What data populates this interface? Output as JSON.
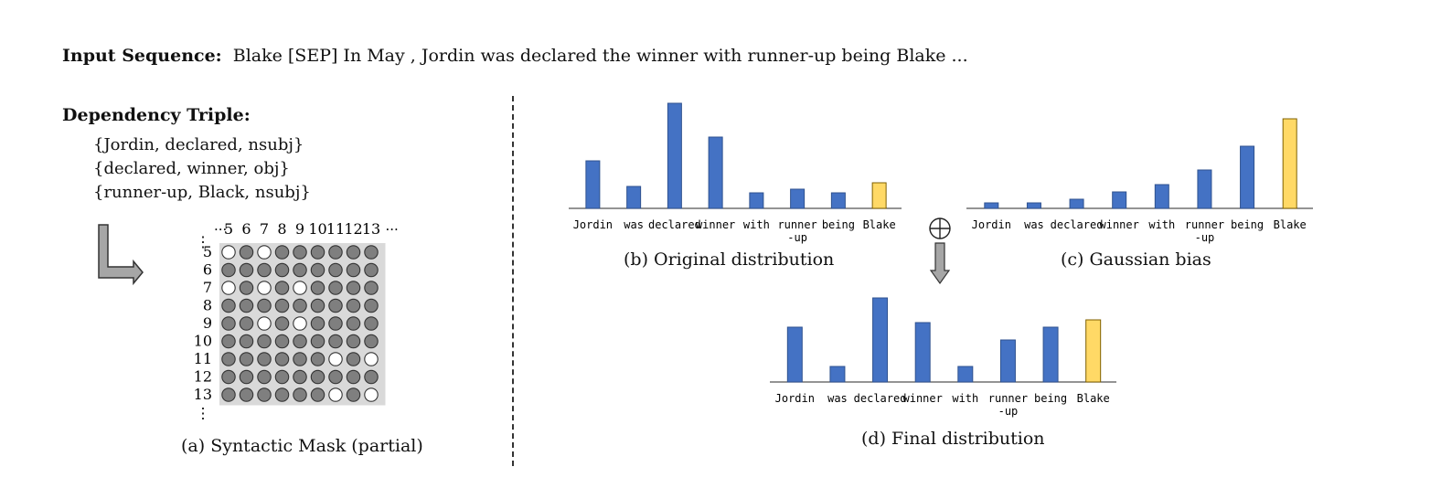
{
  "input_sequence": {
    "label": "Input Sequence:",
    "text": "Blake [SEP] In May , Jordin was declared the winner with runner-up being Blake ..."
  },
  "dependency": {
    "title": "Dependency Triple:",
    "triples": [
      "{Jordin, declared, nsubj}",
      "{declared, winner, obj}",
      "{runner-up, Black, nsubj}"
    ]
  },
  "mask": {
    "caption": "(a) Syntactic Mask (partial)",
    "col_labels": [
      "5",
      "6",
      "7",
      "8",
      "9",
      "10",
      "11",
      "12",
      "13"
    ],
    "row_labels": [
      "5",
      "6",
      "7",
      "8",
      "9",
      "10",
      "11",
      "12",
      "13"
    ],
    "ellipsis_h": "···",
    "ellipsis_v": "⋮",
    "white_cells": [
      [
        0,
        0
      ],
      [
        0,
        2
      ],
      [
        2,
        0
      ],
      [
        2,
        2
      ],
      [
        2,
        4
      ],
      [
        4,
        2
      ],
      [
        4,
        4
      ],
      [
        6,
        6
      ],
      [
        6,
        8
      ],
      [
        8,
        6
      ],
      [
        8,
        8
      ]
    ],
    "colors": {
      "filled": "#7f7f7f",
      "empty": "#ffffff",
      "background": "#d9d9d9"
    }
  },
  "chart_data": [
    {
      "type": "bar",
      "title": "(b) Original distribution",
      "categories": [
        "Jordin",
        "was",
        "declared",
        "winner",
        "with",
        "runner\n-up",
        "being",
        "Blake"
      ],
      "values": [
        52,
        24,
        115,
        78,
        17,
        21,
        17,
        28
      ],
      "ylim": [
        0,
        120
      ],
      "highlight_index": 7
    },
    {
      "type": "bar",
      "title": "(c) Gaussian bias",
      "categories": [
        "Jordin",
        "was",
        "declared",
        "winner",
        "with",
        "runner\n-up",
        "being",
        "Blake"
      ],
      "values": [
        6,
        6,
        10,
        18,
        26,
        42,
        68,
        98
      ],
      "ylim": [
        0,
        120
      ],
      "highlight_index": 7
    },
    {
      "type": "bar",
      "title": "(d) Final distribution",
      "categories": [
        "Jordin",
        "was",
        "declared",
        "winner",
        "with",
        "runner\n-up",
        "being",
        "Blake"
      ],
      "values": [
        60,
        17,
        92,
        65,
        17,
        46,
        60,
        68
      ],
      "ylim": [
        0,
        120
      ],
      "highlight_index": 7
    }
  ],
  "colors": {
    "bar": "#4472c4",
    "bar_stroke": "#2f528f",
    "highlight": "#ffd966",
    "highlight_stroke": "#7f6000"
  },
  "operator": "⊕"
}
